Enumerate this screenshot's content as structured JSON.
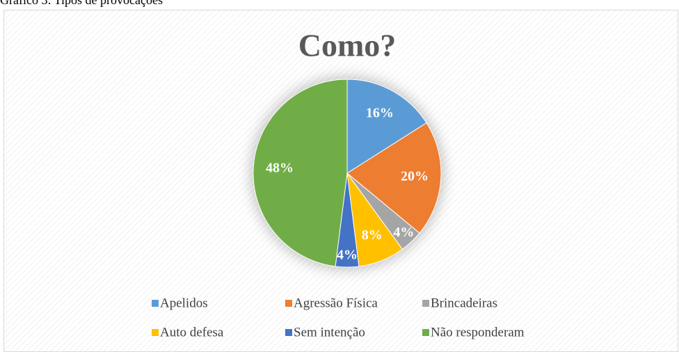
{
  "caption": "Gráfico 3: Tipos de provocações",
  "chart_data": {
    "type": "pie",
    "title": "Como?",
    "categories": [
      "Apelidos",
      "Agressão Física",
      "Brincadeiras",
      "Auto defesa",
      "Sem intenção",
      "Não responderam"
    ],
    "values": [
      16,
      20,
      4,
      8,
      4,
      48
    ],
    "value_labels": [
      "16%",
      "20%",
      "4%",
      "8%",
      "4%",
      "48%"
    ],
    "colors": [
      "#5b9bd5",
      "#ed7d31",
      "#a5a5a5",
      "#ffc000",
      "#4472c4",
      "#70ad47"
    ],
    "legend": "bottom"
  }
}
